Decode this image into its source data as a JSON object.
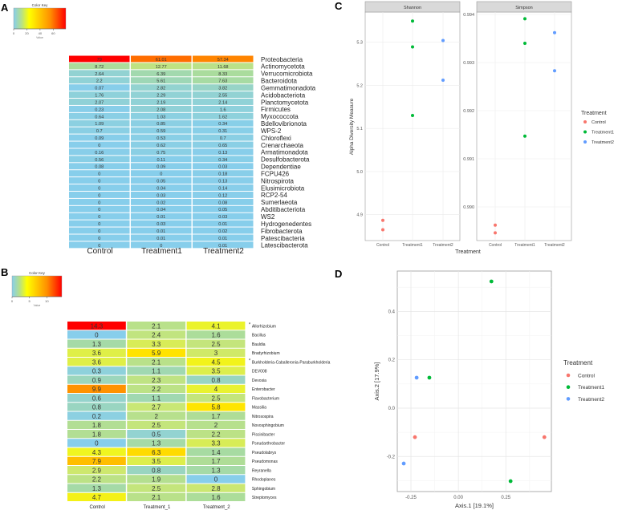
{
  "panel_labels": {
    "a": "A",
    "b": "B",
    "c": "C",
    "d": "D"
  },
  "chart_data": [
    {
      "type": "heatmap",
      "panel": "A",
      "color_key": {
        "title": "Color Key",
        "xlabel": "Value",
        "ticks": [
          0,
          20,
          40,
          60
        ],
        "range": [
          0,
          79
        ]
      },
      "columns": [
        "Control",
        "Treatment1",
        "Treatment2"
      ],
      "rows": [
        {
          "label": "Proteobacteria",
          "values": [
            "79",
            "61.01",
            "57.34"
          ]
        },
        {
          "label": "Actinomycetota",
          "values": [
            "8.72",
            "12.77",
            "11.68"
          ]
        },
        {
          "label": "Verrucomicrobiota",
          "values": [
            "2.64",
            "6.39",
            "8.33"
          ]
        },
        {
          "label": "Bacteroidota",
          "values": [
            "2.2",
            "5.61",
            "7.63"
          ]
        },
        {
          "label": "Gemmatimonadota",
          "values": [
            "0.07",
            "2.82",
            "3.82"
          ]
        },
        {
          "label": "Acidobacteriota",
          "values": [
            "1.76",
            "2.29",
            "2.55"
          ]
        },
        {
          "label": "Planctomycetota",
          "values": [
            "2.07",
            "2.19",
            "2.14"
          ]
        },
        {
          "label": "Firmicutes",
          "values": [
            "0.23",
            "2.08",
            "1.6"
          ]
        },
        {
          "label": "Myxococcota",
          "values": [
            "0.64",
            "1.03",
            "1.62"
          ]
        },
        {
          "label": "Bdellovibrionota",
          "values": [
            "1.09",
            "0.85",
            "0.34"
          ]
        },
        {
          "label": "WPS-2",
          "values": [
            "0.7",
            "0.59",
            "0.31"
          ]
        },
        {
          "label": "Chloroflexi",
          "values": [
            "0.09",
            "0.53",
            "0.7"
          ]
        },
        {
          "label": "Crenarchaeota",
          "values": [
            "0",
            "0.62",
            "0.65"
          ]
        },
        {
          "label": "Armatimonadota",
          "values": [
            "0.16",
            "0.75",
            "0.13"
          ]
        },
        {
          "label": "Desulfobacterota",
          "values": [
            "0.56",
            "0.11",
            "0.34"
          ]
        },
        {
          "label": "Dependentiae",
          "values": [
            "0.08",
            "0.09",
            "0.03"
          ]
        },
        {
          "label": "FCPU426",
          "values": [
            "0",
            "0",
            "0.18"
          ]
        },
        {
          "label": "Nitrospirota",
          "values": [
            "0",
            "0.05",
            "0.13"
          ]
        },
        {
          "label": "Elusimicrobiota",
          "values": [
            "0",
            "0.04",
            "0.14"
          ]
        },
        {
          "label": "RCP2-54",
          "values": [
            "0",
            "0.03",
            "0.12"
          ]
        },
        {
          "label": "Sumerlaeota",
          "values": [
            "0",
            "0.02",
            "0.08"
          ]
        },
        {
          "label": "Abditibacteriota",
          "values": [
            "0",
            "0.04",
            "0.05"
          ]
        },
        {
          "label": "WS2",
          "values": [
            "0",
            "0.01",
            "0.03"
          ]
        },
        {
          "label": "Hydrogenedentes",
          "values": [
            "0",
            "0.03",
            "0.01"
          ]
        },
        {
          "label": "Fibrobacterota",
          "values": [
            "0",
            "0.01",
            "0.02"
          ]
        },
        {
          "label": "Patescibacteria",
          "values": [
            "0",
            "0.01",
            "0.01"
          ]
        },
        {
          "label": "Latescibacterota",
          "values": [
            "0",
            "0",
            "0.01"
          ]
        }
      ]
    },
    {
      "type": "heatmap",
      "panel": "B",
      "color_key": {
        "title": "Color Key",
        "xlabel": "Value",
        "ticks": [
          0,
          5,
          10
        ],
        "range": [
          0,
          14.3
        ]
      },
      "columns": [
        "Control",
        "Treatment_1",
        "Treatment_2"
      ],
      "rows": [
        {
          "label": "Allorhizobium",
          "star": "*",
          "values": [
            "14.3",
            "2.1",
            "4.1"
          ]
        },
        {
          "label": "Bacillus",
          "values": [
            "0",
            "2.4",
            "1.6"
          ]
        },
        {
          "label": "Bauldia",
          "values": [
            "1.3",
            "3.3",
            "2.5"
          ]
        },
        {
          "label": "Bradyrhizobium",
          "values": [
            "3.6",
            "5.9",
            "3"
          ]
        },
        {
          "label": "Burkholderia-Caballeronia-Paraburkholderia",
          "star": "*",
          "values": [
            "3.6",
            "2.1",
            "4.5"
          ]
        },
        {
          "label": "DEV008",
          "values": [
            "0.3",
            "1.1",
            "3.5"
          ]
        },
        {
          "label": "Devosia",
          "values": [
            "0.9",
            "2.3",
            "0.8"
          ]
        },
        {
          "label": "Enterobacter",
          "values": [
            "9.9",
            "2.2",
            "4"
          ]
        },
        {
          "label": "Flavobacterium",
          "values": [
            "0.6",
            "1.1",
            "2.5"
          ]
        },
        {
          "label": "Massilia",
          "values": [
            "0.8",
            "2.7",
            "5.8"
          ]
        },
        {
          "label": "Nitrosospira",
          "values": [
            "0.2",
            "2",
            "1.7"
          ]
        },
        {
          "label": "Novosphingobium",
          "values": [
            "1.8",
            "2.5",
            "2"
          ]
        },
        {
          "label": "Piscinibacter",
          "values": [
            "1.8",
            "0.5",
            "2.2"
          ]
        },
        {
          "label": "Pseudarthrobacter",
          "values": [
            "0",
            "1.3",
            "3.3"
          ]
        },
        {
          "label": "Pseudolabrys",
          "values": [
            "4.3",
            "6.3",
            "1.4"
          ]
        },
        {
          "label": "Pseudomonas",
          "values": [
            "7.9",
            "3.5",
            "1.7"
          ]
        },
        {
          "label": "Reyranella",
          "values": [
            "2.9",
            "0.8",
            "1.3"
          ]
        },
        {
          "label": "Rhodoplanes",
          "values": [
            "2.2",
            "1.9",
            "0"
          ]
        },
        {
          "label": "Sphingobium",
          "values": [
            "1.3",
            "2.5",
            "2.8"
          ]
        },
        {
          "label": "Streptomyces",
          "values": [
            "4.7",
            "2.1",
            "1.6"
          ]
        }
      ]
    },
    {
      "type": "scatter",
      "panel": "C",
      "xlabel": "Treatment",
      "ylabel": "Alpha Diversity Measure",
      "categories": [
        "Control",
        "Treatment1",
        "Treatment2"
      ],
      "legend": {
        "title": "Treatment",
        "placement": "right"
      },
      "series_colors": {
        "Control": "#F8766D",
        "Treatment1": "#00BA38",
        "Treatment2": "#619CFF"
      },
      "facets": [
        {
          "title": "Shannon",
          "ylim": [
            4.84,
            5.37
          ],
          "yticks": [
            "4.9",
            "5.0",
            "5.1",
            "5.2",
            "5.3"
          ],
          "points": {
            "Control": [
              4.887,
              4.865
            ],
            "Treatment1": [
              5.349,
              5.289,
              5.13
            ],
            "Treatment2": [
              5.304,
              5.212
            ]
          }
        },
        {
          "title": "Simpson",
          "ylim": [
            0.9893,
            0.99405
          ],
          "yticks": [
            "0.990",
            "0.991",
            "0.992",
            "0.993",
            "0.994"
          ],
          "points": {
            "Control": [
              0.98962,
              0.98946
            ],
            "Treatment1": [
              0.99391,
              0.9934,
              0.99147
            ],
            "Treatment2": [
              0.99362,
              0.99283
            ]
          }
        }
      ]
    },
    {
      "type": "scatter",
      "panel": "D",
      "xlabel": "Axis.1   [19.1%]",
      "ylabel": "Axis.2   [17.9%]",
      "xlim": [
        -0.322,
        0.49
      ],
      "ylim": [
        -0.345,
        0.567
      ],
      "xticks": [
        "-0.25",
        "0.00",
        "0.25"
      ],
      "yticks": [
        "-0.2",
        "0.0",
        "0.2",
        "0.4"
      ],
      "legend": {
        "title": "Treatment",
        "placement": "right",
        "entries": [
          "Control",
          "Treatment1",
          "Treatment2"
        ]
      },
      "points": [
        {
          "group": "Treatment1",
          "x": 0.174,
          "y": 0.524
        },
        {
          "group": "Treatment2",
          "x": -0.22,
          "y": 0.126
        },
        {
          "group": "Treatment1",
          "x": -0.153,
          "y": 0.126
        },
        {
          "group": "Control",
          "x": -0.229,
          "y": -0.12
        },
        {
          "group": "Control",
          "x": 0.453,
          "y": -0.12
        },
        {
          "group": "Treatment2",
          "x": -0.288,
          "y": -0.229
        },
        {
          "group": "Treatment1",
          "x": 0.275,
          "y": -0.302
        }
      ]
    }
  ]
}
